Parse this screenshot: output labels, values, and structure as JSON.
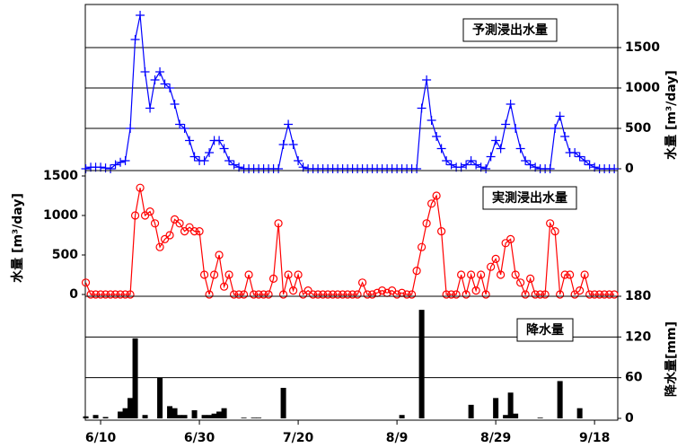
{
  "chart_data": [
    {
      "type": "line",
      "title": "予測浸出水量",
      "y_label": "水量  [m³/day]",
      "marker": "plus",
      "color": "#0000ff",
      "y_axis_side": "right",
      "grid": true,
      "ylim": [
        0,
        2000
      ],
      "yticks": [
        0,
        500,
        1000,
        1500
      ],
      "xlim": [
        -3.1,
        104.7
      ],
      "x": [
        -3,
        -2,
        -1,
        0,
        1,
        2,
        3,
        4,
        5,
        6,
        7,
        8,
        9,
        10,
        11,
        12,
        13,
        14,
        15,
        16,
        17,
        18,
        19,
        20,
        21,
        22,
        23,
        24,
        25,
        26,
        27,
        28,
        29,
        30,
        31,
        32,
        33,
        34,
        35,
        36,
        37,
        38,
        39,
        40,
        41,
        42,
        43,
        44,
        45,
        46,
        47,
        48,
        49,
        50,
        51,
        52,
        53,
        54,
        55,
        56,
        57,
        58,
        59,
        60,
        61,
        62,
        63,
        64,
        65,
        66,
        67,
        68,
        69,
        70,
        71,
        72,
        73,
        74,
        75,
        76,
        77,
        78,
        79,
        80,
        81,
        82,
        83,
        84,
        85,
        86,
        87,
        88,
        89,
        90,
        91,
        92,
        93,
        94,
        95,
        96,
        97,
        98,
        99,
        100,
        101,
        102,
        103,
        104
      ],
      "values": [
        0,
        20,
        20,
        20,
        10,
        0,
        50,
        80,
        100,
        500,
        1600,
        1900,
        1200,
        750,
        1100,
        1200,
        1050,
        1000,
        800,
        550,
        500,
        350,
        150,
        100,
        100,
        200,
        350,
        350,
        250,
        100,
        50,
        20,
        0,
        0,
        0,
        0,
        0,
        0,
        0,
        0,
        300,
        550,
        300,
        100,
        20,
        0,
        0,
        0,
        0,
        0,
        0,
        0,
        0,
        0,
        0,
        0,
        0,
        0,
        0,
        0,
        0,
        0,
        0,
        0,
        0,
        0,
        0,
        0,
        750,
        1100,
        600,
        400,
        250,
        100,
        50,
        20,
        20,
        50,
        100,
        50,
        20,
        0,
        150,
        350,
        250,
        550,
        800,
        500,
        250,
        100,
        50,
        20,
        0,
        0,
        0,
        500,
        650,
        400,
        200,
        200,
        150,
        100,
        50,
        20,
        0,
        0,
        0,
        0
      ]
    },
    {
      "type": "line",
      "title": "実測浸出水量",
      "y_label": "水量  [m³/day]",
      "marker": "circle",
      "color": "#ff0000",
      "y_axis_side": "left",
      "grid": false,
      "ylim": [
        0,
        1500
      ],
      "yticks": [
        0,
        500,
        1000,
        1500
      ],
      "xlim": [
        -3.1,
        104.7
      ],
      "x": [
        -3,
        -2,
        -1,
        0,
        1,
        2,
        3,
        4,
        5,
        6,
        7,
        8,
        9,
        10,
        11,
        12,
        13,
        14,
        15,
        16,
        17,
        18,
        19,
        20,
        21,
        22,
        23,
        24,
        25,
        26,
        27,
        28,
        29,
        30,
        31,
        32,
        33,
        34,
        35,
        36,
        37,
        38,
        39,
        40,
        41,
        42,
        43,
        44,
        45,
        46,
        47,
        48,
        49,
        50,
        51,
        52,
        53,
        54,
        55,
        56,
        57,
        58,
        59,
        60,
        61,
        62,
        63,
        64,
        65,
        66,
        67,
        68,
        69,
        70,
        71,
        72,
        73,
        74,
        75,
        76,
        77,
        78,
        79,
        80,
        81,
        82,
        83,
        84,
        85,
        86,
        87,
        88,
        89,
        90,
        91,
        92,
        93,
        94,
        95,
        96,
        97,
        98,
        99,
        100,
        101,
        102,
        103,
        104
      ],
      "values": [
        150,
        0,
        0,
        0,
        0,
        0,
        0,
        0,
        0,
        0,
        1000,
        1350,
        1000,
        1050,
        900,
        600,
        700,
        750,
        950,
        900,
        800,
        850,
        800,
        800,
        250,
        0,
        250,
        500,
        100,
        250,
        0,
        0,
        0,
        250,
        0,
        0,
        0,
        0,
        200,
        900,
        0,
        250,
        50,
        250,
        0,
        50,
        0,
        0,
        0,
        0,
        0,
        0,
        0,
        0,
        0,
        0,
        150,
        0,
        0,
        20,
        50,
        20,
        50,
        0,
        20,
        0,
        0,
        300,
        600,
        900,
        1150,
        1250,
        800,
        0,
        0,
        0,
        250,
        0,
        250,
        50,
        250,
        0,
        350,
        450,
        250,
        650,
        700,
        250,
        150,
        0,
        200,
        0,
        0,
        0,
        900,
        800,
        0,
        250,
        250,
        0,
        50,
        250,
        0,
        0,
        0,
        0,
        0,
        0
      ]
    },
    {
      "type": "bar",
      "title": "降水量",
      "y_label": "降水量[mm]",
      "color": "#000000",
      "y_axis_side": "right",
      "grid": true,
      "ylim": [
        0,
        180
      ],
      "yticks": [
        0,
        60,
        120,
        180
      ],
      "xlim": [
        -3.1,
        104.7
      ],
      "xticks": [
        {
          "value": 0,
          "label": "6/10"
        },
        {
          "value": 20,
          "label": "6/30"
        },
        {
          "value": 40,
          "label": "7/20"
        },
        {
          "value": 60,
          "label": "8/9"
        },
        {
          "value": 80,
          "label": "8/29"
        },
        {
          "value": 100,
          "label": "9/18"
        }
      ],
      "x": [
        -3,
        -1,
        1,
        4,
        5,
        6,
        7,
        9,
        12,
        14,
        15,
        16,
        17,
        19,
        21,
        22,
        23,
        24,
        25,
        29,
        31,
        32,
        37,
        61,
        65,
        75,
        80,
        82,
        83,
        84,
        89,
        93,
        97
      ],
      "values": [
        3,
        5,
        2,
        10,
        15,
        30,
        118,
        5,
        60,
        18,
        15,
        5,
        5,
        12,
        5,
        5,
        7,
        10,
        15,
        1,
        1,
        1,
        45,
        5,
        160,
        20,
        30,
        5,
        38,
        7,
        1,
        55,
        15
      ]
    }
  ]
}
